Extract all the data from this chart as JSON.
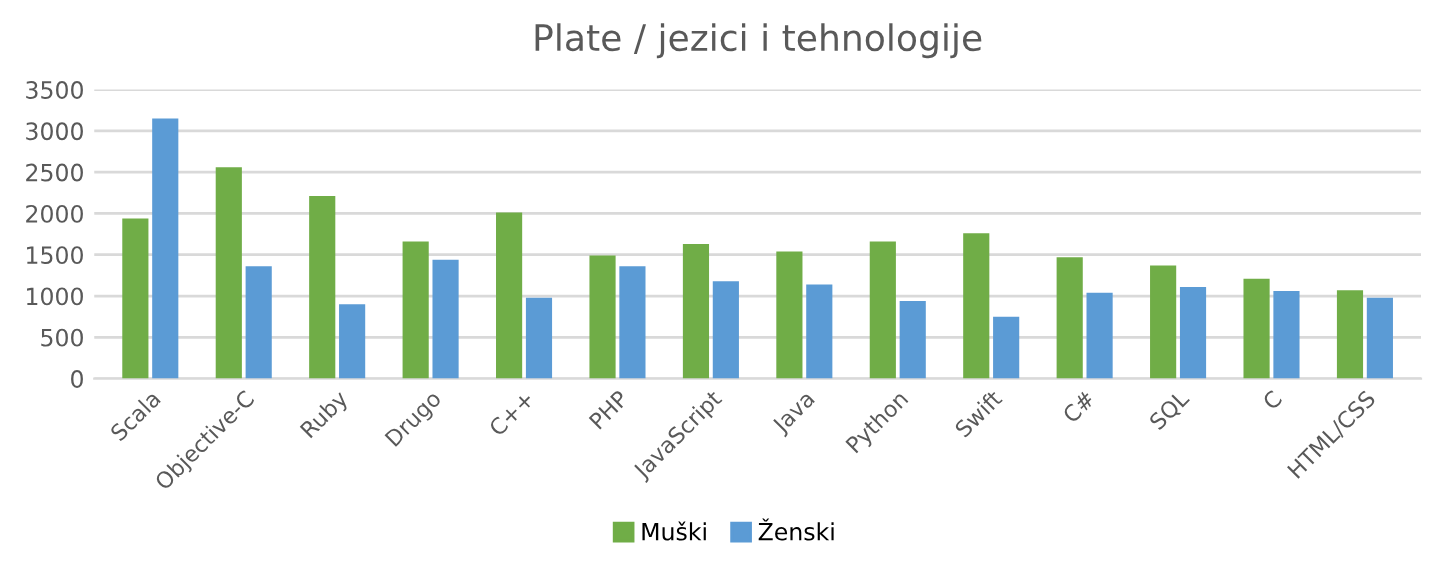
{
  "chart_data": {
    "type": "bar",
    "title": "Plate / jezici i tehnologije",
    "categories": [
      "Scala",
      "Objective-C",
      "Ruby",
      "Drugo",
      "C++",
      "PHP",
      "JavaScript",
      "Java",
      "Python",
      "Swift",
      "C#",
      "SQL",
      "C",
      "HTML/CSS"
    ],
    "series": [
      {
        "name": "Muški",
        "color": "#70ad47",
        "values": [
          1940,
          2560,
          2210,
          1660,
          2010,
          1490,
          1630,
          1540,
          1660,
          1760,
          1470,
          1370,
          1210,
          1070
        ]
      },
      {
        "name": "Ženski",
        "color": "#5b9bd5",
        "values": [
          3150,
          1360,
          900,
          1440,
          980,
          1360,
          1180,
          1140,
          940,
          750,
          1040,
          1110,
          1060,
          980
        ]
      }
    ],
    "ylim": [
      0,
      3500
    ],
    "yticks": [
      0,
      500,
      1000,
      1500,
      2000,
      2500,
      3000,
      3500
    ],
    "grid": "y",
    "legend": "bottom"
  }
}
